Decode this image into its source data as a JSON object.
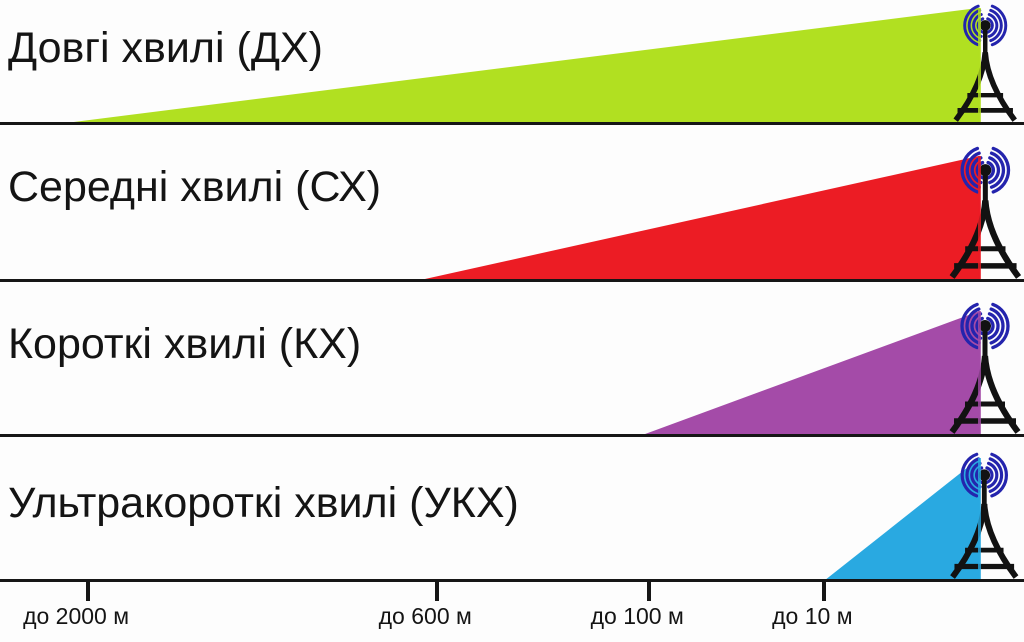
{
  "rows": [
    {
      "label": "Довгі хвилі (ДХ)",
      "wavelength_tick": "до 2000 м",
      "color": "#b1e021",
      "start_pct": 7.2,
      "end_pct": 95.7,
      "apex_pct": 6.4
    },
    {
      "label": "Середні хвилі (СХ)",
      "wavelength_tick": "до 600 м",
      "color": "#ec1c24",
      "start_pct": 41.5,
      "end_pct": 95.7,
      "apex_pct": 20
    },
    {
      "label": "Короткі хвилі (КХ)",
      "wavelength_tick": "до 100 м",
      "color": "#a44ba8",
      "start_pct": 63.0,
      "end_pct": 95.7,
      "apex_pct": 19
    },
    {
      "label": "Ультракороткі хвилі (УКХ)",
      "wavelength_tick": "до 10 м",
      "color": "#29a9e1",
      "start_pct": 80.7,
      "end_pct": 95.7,
      "apex_pct": 14.5
    }
  ],
  "axis": {
    "ticks": [
      {
        "label": "до 2000 м",
        "pos_pct": 8.6
      },
      {
        "label": "до 600 м",
        "pos_pct": 42.7
      },
      {
        "label": "до 100 м",
        "pos_pct": 63.4
      },
      {
        "label": "до 10 м",
        "pos_pct": 80.5
      }
    ]
  },
  "colors": {
    "wave_icon": "#2424ad",
    "tower": "#121212",
    "separator": "#161616"
  }
}
